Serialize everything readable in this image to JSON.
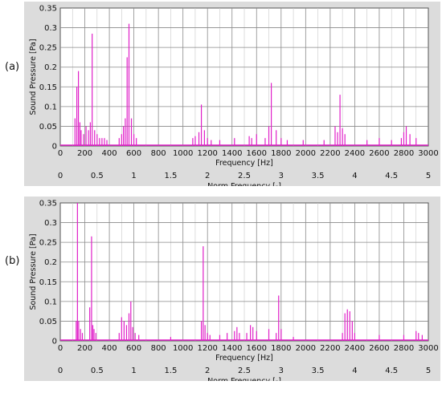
{
  "panels": [
    {
      "tag": "(a)",
      "chart_data": {
        "type": "bar",
        "xlabel": "Frequency [Hz]",
        "ylabel": "Sound Pressure [Pa]",
        "secondary_xlabel": "Norm Frequency [-]",
        "xlim": [
          0,
          3000
        ],
        "ylim": [
          0,
          0.35
        ],
        "grid": true,
        "line_color": "#e020c8",
        "x_ticks": [
          "0",
          "200",
          "400",
          "600",
          "800",
          "1000",
          "1200",
          "1400",
          "1600",
          "1800",
          "2000",
          "2200",
          "2400",
          "2600",
          "2800",
          "3000"
        ],
        "y_ticks": [
          "0",
          "0.05",
          "0.1",
          "0.15",
          "0.2",
          "0.25",
          "0.3",
          "0.35"
        ],
        "secondary_x_ticks": [
          "0",
          "0.5",
          "1",
          "1.5",
          "2",
          "2.5",
          "3",
          "3.5",
          "4",
          "4.5",
          "5"
        ],
        "peaks": {
          "x": [
            120,
            135,
            148,
            160,
            170,
            190,
            210,
            230,
            245,
            260,
            280,
            300,
            320,
            340,
            360,
            380,
            480,
            500,
            515,
            530,
            545,
            560,
            580,
            600,
            620,
            1080,
            1100,
            1130,
            1150,
            1175,
            1200,
            1230,
            1300,
            1420,
            1540,
            1560,
            1600,
            1670,
            1700,
            1720,
            1760,
            1800,
            1850,
            1980,
            2150,
            2240,
            2260,
            2280,
            2300,
            2320,
            2500,
            2600,
            2700,
            2780,
            2800,
            2820,
            2850,
            2900
          ],
          "y": [
            0.07,
            0.15,
            0.19,
            0.06,
            0.04,
            0.03,
            0.05,
            0.04,
            0.06,
            0.285,
            0.04,
            0.03,
            0.02,
            0.02,
            0.02,
            0.015,
            0.02,
            0.03,
            0.05,
            0.07,
            0.225,
            0.31,
            0.07,
            0.03,
            0.02,
            0.02,
            0.025,
            0.035,
            0.105,
            0.04,
            0.02,
            0.015,
            0.015,
            0.02,
            0.025,
            0.02,
            0.03,
            0.02,
            0.05,
            0.16,
            0.04,
            0.02,
            0.015,
            0.015,
            0.015,
            0.05,
            0.035,
            0.13,
            0.045,
            0.03,
            0.015,
            0.02,
            0.015,
            0.02,
            0.035,
            0.05,
            0.03,
            0.02
          ]
        }
      }
    },
    {
      "tag": "(b)",
      "chart_data": {
        "type": "bar",
        "xlabel": "Frequency [Hz]",
        "ylabel": "Sound Pressure [Pa]",
        "secondary_xlabel": "Norm Frequency [-]",
        "xlim": [
          0,
          3000
        ],
        "ylim": [
          0,
          0.35
        ],
        "grid": true,
        "line_color": "#e020c8",
        "x_ticks": [
          "0",
          "200",
          "400",
          "600",
          "800",
          "1000",
          "1200",
          "1400",
          "1600",
          "1800",
          "2000",
          "2200",
          "2400",
          "2600",
          "2800",
          "3000"
        ],
        "y_ticks": [
          "0",
          "0.05",
          "0.1",
          "0.15",
          "0.2",
          "0.25",
          "0.3",
          "0.35"
        ],
        "secondary_x_ticks": [
          "0",
          "0.5",
          "1",
          "1.5",
          "2",
          "2.5",
          "3",
          "3.5",
          "4",
          "4.5",
          "5"
        ],
        "peaks": {
          "x": [
            130,
            140,
            150,
            165,
            180,
            240,
            255,
            265,
            275,
            290,
            480,
            500,
            520,
            540,
            560,
            575,
            590,
            610,
            640,
            900,
            1150,
            1165,
            1180,
            1200,
            1220,
            1300,
            1360,
            1420,
            1440,
            1460,
            1520,
            1550,
            1570,
            1600,
            1700,
            1760,
            1780,
            1800,
            1900,
            2300,
            2320,
            2340,
            2360,
            2380,
            2400,
            2600,
            2800,
            2900,
            2920,
            2950
          ],
          "y": [
            0.05,
            0.35,
            0.05,
            0.03,
            0.02,
            0.085,
            0.265,
            0.04,
            0.03,
            0.02,
            0.02,
            0.06,
            0.05,
            0.04,
            0.07,
            0.1,
            0.035,
            0.02,
            0.015,
            0.01,
            0.05,
            0.24,
            0.04,
            0.02,
            0.015,
            0.015,
            0.02,
            0.025,
            0.035,
            0.02,
            0.02,
            0.04,
            0.035,
            0.025,
            0.03,
            0.02,
            0.115,
            0.03,
            0.01,
            0.02,
            0.07,
            0.08,
            0.075,
            0.05,
            0.02,
            0.015,
            0.015,
            0.025,
            0.02,
            0.015
          ]
        }
      }
    }
  ]
}
